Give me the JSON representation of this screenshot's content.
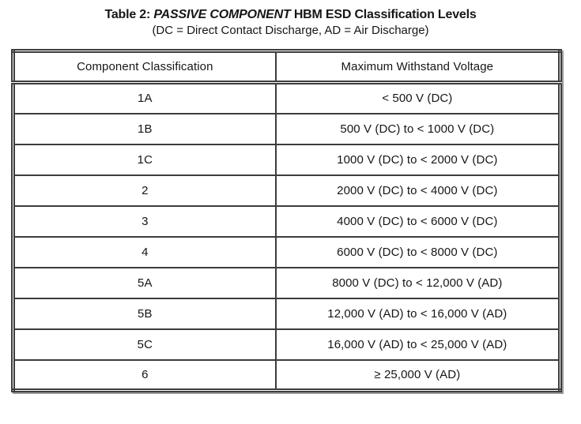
{
  "title": {
    "part1": "Table 2: ",
    "part2": "PASSIVE COMPONENT",
    "part3": " HBM ESD Classification Levels",
    "subtitle": "(DC = Direct Contact Discharge, AD = Air Discharge)"
  },
  "table": {
    "columns": [
      "Component Classification",
      "Maximum Withstand Voltage"
    ],
    "rows": [
      {
        "classification": "1A",
        "voltage": "< 500 V (DC)"
      },
      {
        "classification": "1B",
        "voltage": "500 V (DC) to < 1000 V (DC)"
      },
      {
        "classification": "1C",
        "voltage": "1000 V (DC) to < 2000 V (DC)"
      },
      {
        "classification": "2",
        "voltage": "2000 V (DC) to < 4000 V (DC)"
      },
      {
        "classification": "3",
        "voltage": "4000 V (DC) to < 6000 V (DC)"
      },
      {
        "classification": "4",
        "voltage": "6000 V (DC) to < 8000 V (DC)"
      },
      {
        "classification": "5A",
        "voltage": "8000 V (DC) to < 12,000 V (AD)"
      },
      {
        "classification": "5B",
        "voltage": "12,000 V (AD) to < 16,000 V (AD)"
      },
      {
        "classification": "5C",
        "voltage": "16,000 V (AD) to < 25,000 V (AD)"
      },
      {
        "classification": "6",
        "voltage": "≥ 25,000 V (AD)"
      }
    ]
  },
  "colors": {
    "background": "#ffffff",
    "border": "#3c3c3c",
    "text": "#161616",
    "scan_shadow": "#9c9c9c"
  }
}
